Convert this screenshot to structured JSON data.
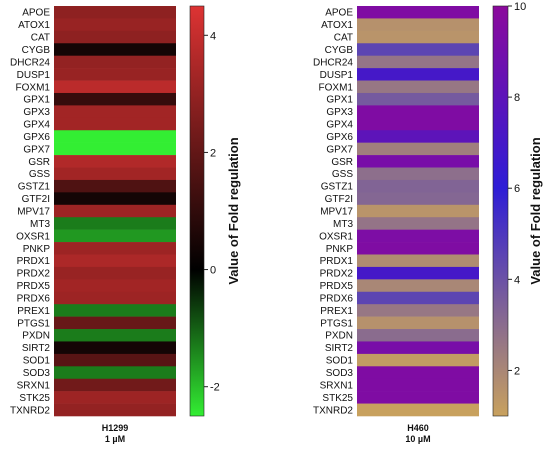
{
  "chart_data": [
    {
      "type": "heatmap",
      "panel": "H1299",
      "condition_lines": [
        "H1299",
        "1 µM"
      ],
      "rows": [
        "APOE",
        "ATOX1",
        "CAT",
        "CYGB",
        "DHCR24",
        "DUSP1",
        "FOXM1",
        "GPX1",
        "GPX3",
        "GPX4",
        "GPX6",
        "GPX7",
        "GSR",
        "GSS",
        "GSTZ1",
        "GTF2I",
        "MPV17",
        "MT3",
        "OXSR1",
        "PNKP",
        "PRDX1",
        "PRDX2",
        "PRDX5",
        "PRDX6",
        "PREX1",
        "PTGS1",
        "PXDN",
        "SIRT2",
        "SOD1",
        "SOD3",
        "SRXN1",
        "STK25",
        "TXNRD2"
      ],
      "values": [
        2.9,
        3.1,
        2.9,
        0.4,
        3.0,
        3.1,
        3.8,
        1.1,
        3.3,
        3.3,
        -2.8,
        -2.8,
        3.6,
        3.3,
        1.6,
        0.4,
        3.2,
        -1.3,
        -1.6,
        3.2,
        3.5,
        3.1,
        3.3,
        3.2,
        -1.3,
        2.1,
        -1.3,
        0.4,
        1.8,
        -1.3,
        2.3,
        3.2,
        3.0
      ],
      "colorbar": {
        "title": "Value of Fold regulation",
        "range": [
          -2.5,
          4.5
        ],
        "ticks": [
          -2,
          0,
          2,
          4
        ],
        "colors": {
          "low": "#33ee33",
          "mid": "#000000",
          "high": "#dd3333"
        }
      }
    },
    {
      "type": "heatmap",
      "panel": "H460",
      "condition_lines": [
        "H460",
        "10 µM"
      ],
      "rows": [
        "APOE",
        "ATOX1",
        "CAT",
        "CYGB",
        "DHCR24",
        "DUSP1",
        "FOXM1",
        "GPX1",
        "GPX3",
        "GPX4",
        "GPX6",
        "GPX7",
        "GSR",
        "GSS",
        "GSTZ1",
        "GTF2I",
        "MPV17",
        "MT3",
        "OXSR1",
        "PNKP",
        "PRDX1",
        "PRDX2",
        "PRDX5",
        "PRDX6",
        "PREX1",
        "PTGS1",
        "PXDN",
        "SIRT2",
        "SOD1",
        "SOD3",
        "SRXN1",
        "STK25",
        "TXNRD2"
      ],
      "values": [
        9.5,
        1.6,
        1.5,
        4.5,
        2.7,
        7.0,
        2.6,
        3.7,
        9.5,
        9.5,
        8.0,
        2.3,
        9.2,
        2.9,
        3.3,
        3.2,
        1.5,
        2.7,
        9.4,
        9.5,
        1.8,
        7.0,
        2.0,
        4.5,
        2.6,
        1.6,
        3.0,
        9.2,
        1.2,
        9.5,
        9.5,
        9.5,
        1.0
      ],
      "colorbar": {
        "title": "Value of Fold regulation",
        "range": [
          1,
          10
        ],
        "ticks": [
          2,
          4,
          6,
          8,
          10
        ],
        "colors": {
          "low": "#c8a15e",
          "mid": "#2e1dd6",
          "high": "#8b0a9c"
        }
      }
    }
  ]
}
